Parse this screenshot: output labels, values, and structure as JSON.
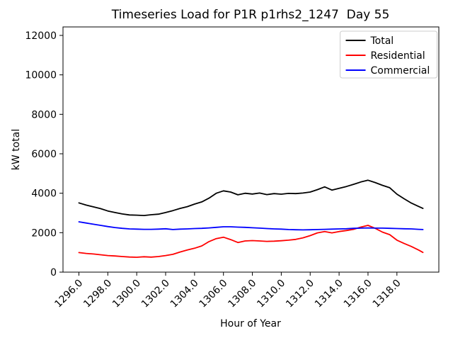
{
  "chart_data": {
    "type": "line",
    "title": "Timeseries Load for P1R p1rhs2_1247  Day 55",
    "xlabel": "Hour of Year",
    "ylabel": "kW total",
    "xlim": [
      1294.9,
      1320.9
    ],
    "ylim": [
      0,
      12430
    ],
    "grid": false,
    "xticks": {
      "values": [
        1296,
        1298,
        1300,
        1302,
        1304,
        1306,
        1308,
        1310,
        1312,
        1314,
        1316,
        1318
      ],
      "labels": [
        "1296.0",
        "1298.0",
        "1300.0",
        "1302.0",
        "1304.0",
        "1306.0",
        "1308.0",
        "1310.0",
        "1312.0",
        "1314.0",
        "1316.0",
        "1318.0"
      ]
    },
    "yticks": {
      "values": [
        0,
        2000,
        4000,
        6000,
        8000,
        10000,
        12000
      ],
      "labels": [
        "0",
        "2000",
        "4000",
        "6000",
        "8000",
        "10000",
        "12000"
      ]
    },
    "x": [
      1296.0,
      1296.5,
      1297.0,
      1297.5,
      1298.0,
      1298.5,
      1299.0,
      1299.5,
      1300.0,
      1300.5,
      1301.0,
      1301.5,
      1302.0,
      1302.5,
      1303.0,
      1303.5,
      1304.0,
      1304.5,
      1305.0,
      1305.5,
      1306.0,
      1306.5,
      1307.0,
      1307.5,
      1308.0,
      1308.5,
      1309.0,
      1309.5,
      1310.0,
      1310.5,
      1311.0,
      1311.5,
      1312.0,
      1312.5,
      1313.0,
      1313.5,
      1314.0,
      1314.5,
      1315.0,
      1315.5,
      1316.0,
      1316.5,
      1317.0,
      1317.5,
      1318.0,
      1318.5,
      1319.0,
      1319.5,
      1319.8
    ],
    "series": [
      {
        "name": "Total",
        "color": "#000000",
        "values": [
          3510,
          3400,
          3310,
          3220,
          3100,
          3020,
          2950,
          2900,
          2890,
          2870,
          2910,
          2940,
          3020,
          3120,
          3230,
          3320,
          3450,
          3560,
          3750,
          4000,
          4120,
          4060,
          3920,
          4000,
          3960,
          4010,
          3930,
          3980,
          3950,
          3990,
          3980,
          4010,
          4060,
          4180,
          4320,
          4160,
          4250,
          4340,
          4450,
          4570,
          4660,
          4540,
          4400,
          4280,
          3950,
          3720,
          3500,
          3330,
          3230
        ]
      },
      {
        "name": "Residential",
        "color": "#ff0000",
        "values": [
          990,
          950,
          920,
          880,
          840,
          820,
          790,
          765,
          755,
          780,
          760,
          790,
          840,
          900,
          1020,
          1120,
          1210,
          1330,
          1550,
          1700,
          1770,
          1650,
          1500,
          1580,
          1600,
          1580,
          1560,
          1570,
          1590,
          1620,
          1660,
          1740,
          1850,
          1990,
          2060,
          1990,
          2060,
          2110,
          2170,
          2280,
          2370,
          2220,
          2030,
          1900,
          1620,
          1450,
          1300,
          1120,
          1000
        ]
      },
      {
        "name": "Commercial",
        "color": "#0000ff",
        "values": [
          2550,
          2490,
          2430,
          2370,
          2310,
          2260,
          2220,
          2190,
          2180,
          2170,
          2170,
          2180,
          2200,
          2160,
          2180,
          2190,
          2210,
          2220,
          2240,
          2270,
          2300,
          2300,
          2280,
          2270,
          2250,
          2230,
          2210,
          2190,
          2180,
          2160,
          2150,
          2140,
          2150,
          2160,
          2170,
          2180,
          2190,
          2200,
          2220,
          2230,
          2240,
          2230,
          2230,
          2220,
          2210,
          2200,
          2190,
          2170,
          2160
        ]
      }
    ],
    "legend": {
      "position": "upper-right",
      "entries": [
        "Total",
        "Residential",
        "Commercial"
      ],
      "border_color": "#cccccc"
    },
    "line_width": 1.8,
    "frame_color": "#000000"
  }
}
